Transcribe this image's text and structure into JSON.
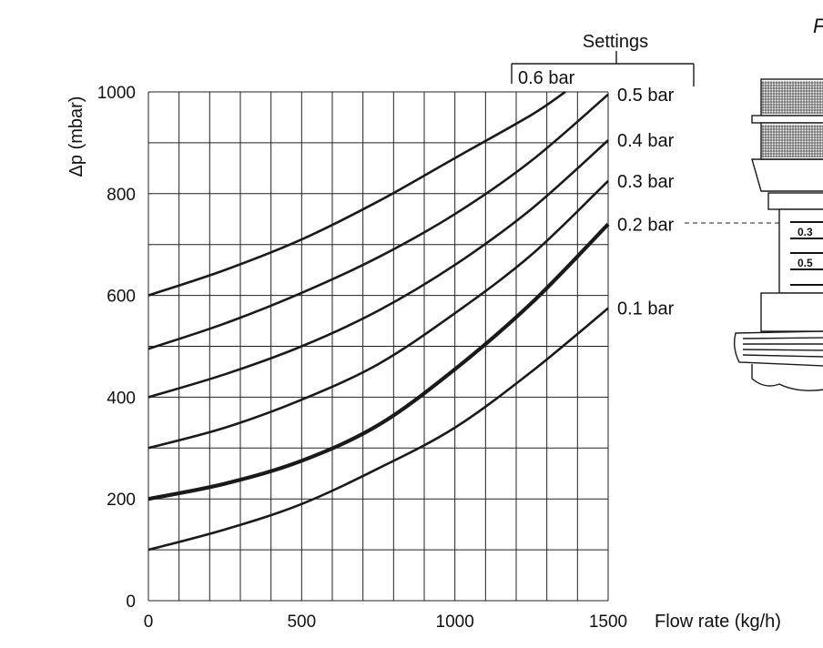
{
  "chart_data": {
    "type": "line",
    "title": "",
    "xlabel": "Flow rate (kg/h)",
    "ylabel": "Δp (mbar)",
    "xlim": [
      0,
      1500
    ],
    "ylim": [
      0,
      1000
    ],
    "x_ticks": [
      0,
      500,
      1000,
      1500
    ],
    "y_ticks": [
      0,
      200,
      400,
      600,
      800,
      1000
    ],
    "grid": true,
    "legend_title": "Settings",
    "highlight_series": "0.2 bar",
    "series": [
      {
        "name": "0.1 bar",
        "x": [
          0,
          250,
          500,
          750,
          1000,
          1250,
          1500
        ],
        "values": [
          100,
          140,
          190,
          260,
          340,
          450,
          575
        ]
      },
      {
        "name": "0.2 bar",
        "x": [
          0,
          250,
          500,
          750,
          1000,
          1250,
          1500
        ],
        "values": [
          200,
          230,
          275,
          345,
          455,
          585,
          740
        ]
      },
      {
        "name": "0.3 bar",
        "x": [
          0,
          250,
          500,
          750,
          1000,
          1250,
          1500
        ],
        "values": [
          300,
          340,
          395,
          465,
          565,
          680,
          825
        ]
      },
      {
        "name": "0.4 bar",
        "x": [
          0,
          250,
          500,
          750,
          1000,
          1250,
          1500
        ],
        "values": [
          400,
          445,
          500,
          570,
          660,
          770,
          905
        ]
      },
      {
        "name": "0.5 bar",
        "x": [
          0,
          250,
          500,
          750,
          1000,
          1250,
          1500
        ],
        "values": [
          495,
          545,
          605,
          675,
          760,
          865,
          995
        ]
      },
      {
        "name": "0.6 bar",
        "x": [
          0,
          250,
          500,
          750,
          1000,
          1250,
          1360
        ],
        "values": [
          600,
          650,
          710,
          785,
          870,
          955,
          1000
        ]
      }
    ]
  },
  "figure": {
    "cut_text": "F",
    "scale_marks": [
      "0.3",
      "0.5"
    ]
  }
}
